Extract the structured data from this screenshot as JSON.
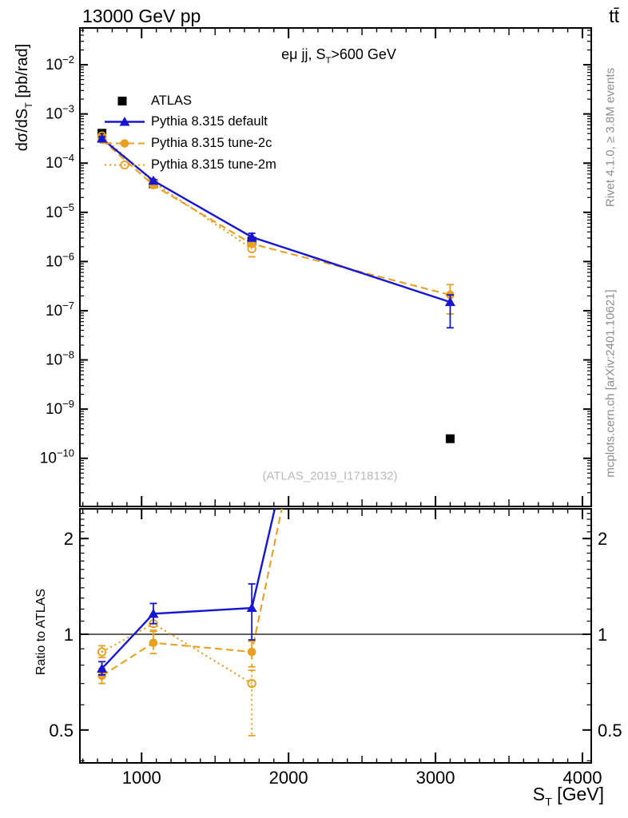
{
  "header": {
    "left": "13000 GeV pp",
    "right": "tt̄"
  },
  "side_notes": {
    "top": "Rivet 4.1.0, ≥ 3.8M events",
    "bottom": "mcplots.cern.ch [arXiv:2401.10621]"
  },
  "watermark": "(ATLAS_2019_I1718132)",
  "titles": {
    "panel_prefix": "eμ jj, S",
    "panel_sub": "T",
    "panel_suffix": ">600 GeV",
    "y_prefix": "dσ/dS",
    "y_sub": "T",
    "y_suffix": " [pb/rad]",
    "x_prefix": "S",
    "x_sub": "T",
    "x_suffix": " [GeV]",
    "ratio_y": "Ratio to ATLAS"
  },
  "colors": {
    "atlas": "#000000",
    "pythia_blue": "#1616d2",
    "pythia_orange": "#e8a020",
    "gray_text": "#8c8c8c",
    "watermark": "#b9b9b9"
  },
  "chart_data": {
    "type": "line",
    "x_label": "S_T [GeV]",
    "x_range": [
      580,
      4060
    ],
    "x_major_ticks": [
      1000,
      2000,
      3000,
      4000
    ],
    "x_minor_step": 100,
    "x": [
      730,
      1080,
      1750,
      3100
    ],
    "top_panel": {
      "y_label": "dσ/dS_T [pb/rad]",
      "y_scale": "log",
      "y_range": [
        1.05e-11,
        0.056
      ],
      "y_tick_exponents": [
        -2,
        -3,
        -4,
        -5,
        -6,
        -7,
        -8,
        -9,
        -10
      ],
      "title": "eμ jj, S_T>600 GeV"
    },
    "ratio_panel": {
      "y_label": "Ratio to ATLAS",
      "y_scale": "log",
      "y_range": [
        0.394,
        2.48
      ],
      "y_ticks": [
        2,
        1,
        0.5
      ],
      "reference_line": 1
    },
    "series": [
      {
        "name": "ATLAS",
        "marker": "filled-square",
        "line": "none",
        "color": "#000000",
        "values": [
          0.000405,
          3.8e-05,
          2.6e-06,
          2.5e-10
        ]
      },
      {
        "name": "Pythia 8.315 default",
        "marker": "filled-triangle",
        "line": "solid",
        "color": "#1616d2",
        "values": [
          0.000316,
          4.4e-05,
          3.15e-06,
          1.5e-07
        ],
        "err_lo": [
          0.000295,
          4.15e-05,
          2.6e-06,
          4.5e-08
        ],
        "err_hi": [
          0.00034,
          4.65e-05,
          3.75e-06,
          2.1e-07
        ],
        "ratio": [
          0.78,
          1.16,
          1.21,
          600
        ],
        "ratio_err_lo": [
          0.745,
          1.08,
          0.96,
          null
        ],
        "ratio_err_hi": [
          0.82,
          1.25,
          1.44,
          null
        ]
      },
      {
        "name": "Pythia 8.315 tune-2c",
        "marker": "filled-circle",
        "line": "dashed",
        "color": "#e8a020",
        "values": [
          0.0003,
          3.57e-05,
          2.29e-06,
          2.1e-07
        ],
        "err_lo": [
          0.00028,
          3.35e-05,
          2.05e-06,
          8.6e-08
        ],
        "err_hi": [
          0.00032,
          3.8e-05,
          2.5e-06,
          3.4e-07
        ],
        "ratio": [
          0.74,
          0.94,
          0.88,
          840
        ],
        "ratio_err_lo": [
          0.7,
          0.87,
          0.79,
          null
        ],
        "ratio_err_hi": [
          0.78,
          1.02,
          0.95,
          null
        ]
      },
      {
        "name": "Pythia 8.315 tune-2m",
        "marker": "open-circle",
        "line": "dotted",
        "color": "#e8a020",
        "values": [
          0.000356,
          4.1e-05,
          1.82e-06,
          null
        ],
        "err_lo": [
          0.000335,
          3.85e-05,
          1.25e-06,
          null
        ],
        "err_hi": [
          0.000375,
          4.35e-05,
          2e-06,
          null
        ],
        "ratio": [
          0.88,
          1.08,
          0.7,
          null
        ],
        "ratio_err_lo": [
          0.845,
          1.03,
          0.48,
          null
        ],
        "ratio_err_hi": [
          0.92,
          1.14,
          0.77,
          null
        ]
      }
    ]
  }
}
